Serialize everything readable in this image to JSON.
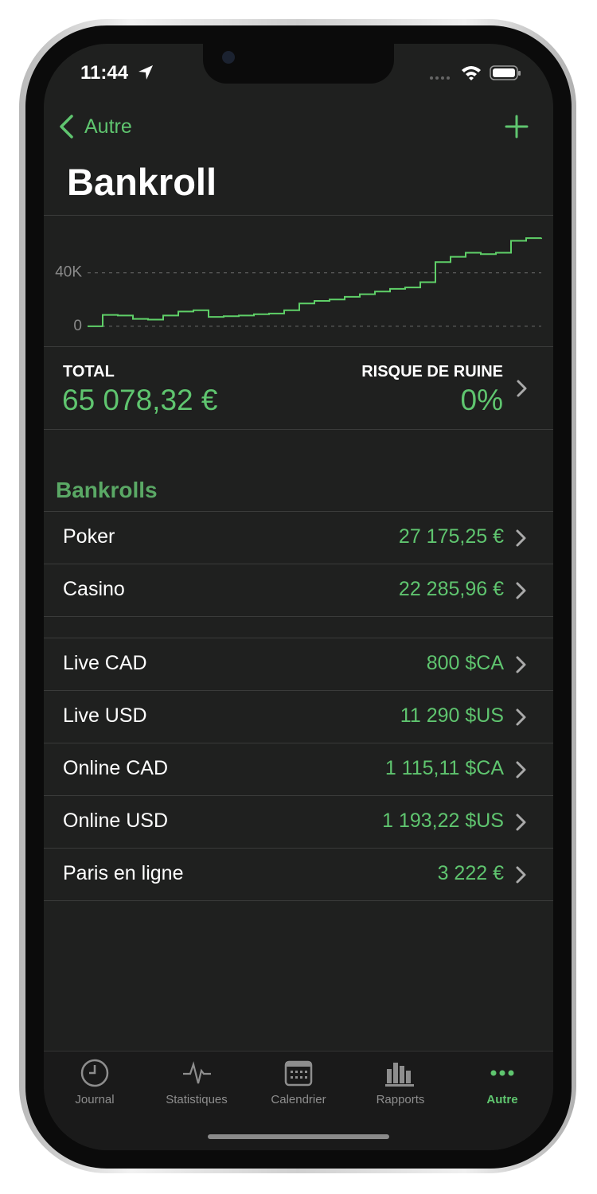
{
  "status_bar": {
    "time": "11:44"
  },
  "nav": {
    "back": "Autre",
    "title": "Bankroll"
  },
  "chart_data": {
    "type": "line",
    "color": "#5fd068",
    "ylim": [
      -15000,
      75000
    ],
    "yticks": [
      {
        "value": 0,
        "label": "0"
      },
      {
        "value": 40000,
        "label": "40K"
      }
    ],
    "grid": true,
    "values": [
      0,
      8500,
      8000,
      5500,
      5000,
      8000,
      11000,
      12000,
      7000,
      7500,
      8000,
      9000,
      9500,
      12000,
      17000,
      19000,
      20000,
      22000,
      24000,
      26000,
      28000,
      29000,
      33000,
      48000,
      52000,
      55000,
      54000,
      55000,
      64000,
      66000,
      66300
    ]
  },
  "summary": {
    "total_label": "TOTAL",
    "total_value": "65 078,32 €",
    "risk_label": "RISQUE DE RUINE",
    "risk_value": "0%"
  },
  "bankrolls": {
    "header": "Bankrolls",
    "groups": [
      {
        "rows": [
          {
            "name": "Poker",
            "value": "27 175,25 €"
          },
          {
            "name": "Casino",
            "value": "22 285,96 €"
          }
        ]
      },
      {
        "rows": [
          {
            "name": "Live CAD",
            "value": "800 $CA"
          },
          {
            "name": "Live USD",
            "value": "11 290 $US"
          },
          {
            "name": "Online CAD",
            "value": "1 115,11 $CA"
          },
          {
            "name": "Online USD",
            "value": "1 193,22 $US"
          },
          {
            "name": "Paris en ligne",
            "value": "3 222 €"
          }
        ]
      }
    ]
  },
  "tab_bar": {
    "items": [
      "Journal",
      "Statistiques",
      "Calendrier",
      "Rapports",
      "Autre"
    ]
  }
}
